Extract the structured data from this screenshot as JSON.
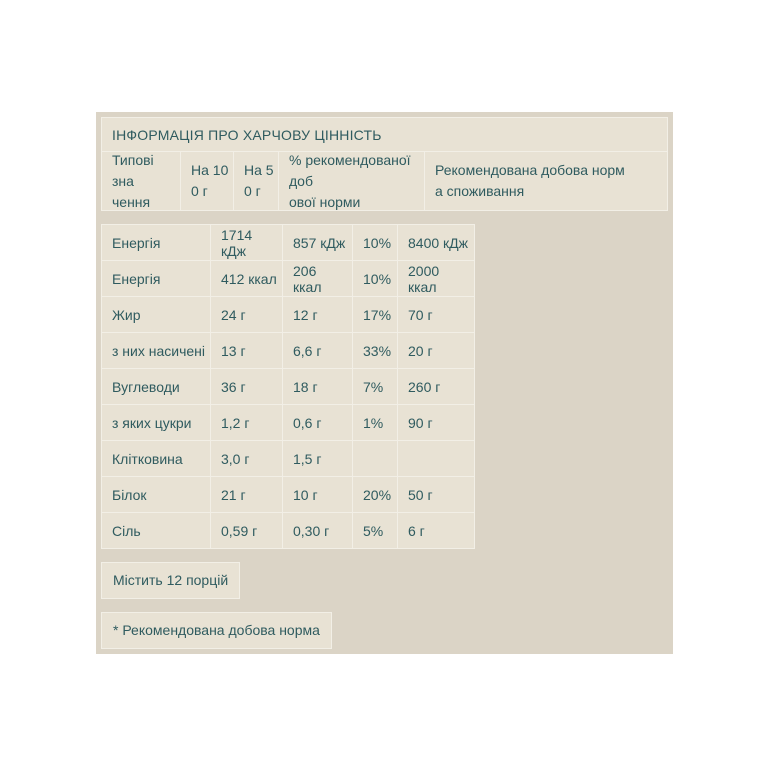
{
  "panel": {
    "title": "ІНФОРМАЦІЯ ПРО ХАРЧОВУ ЦІННІСТЬ"
  },
  "table": {
    "columns": [
      {
        "label": "Типові зна\nчення"
      },
      {
        "label": "На 10\n0 г"
      },
      {
        "label": "На 5\n0 г"
      },
      {
        "label": "% рекомендованої доб\nової норми"
      },
      {
        "label": "Рекомендована добова норм\nа споживання"
      }
    ],
    "rows": [
      {
        "name": "Енергія",
        "per_100g": "1714 кДж",
        "per_50g": "857 кДж",
        "percent_rda": "10%",
        "rda": "8400 кДж"
      },
      {
        "name": "Енергія",
        "per_100g": "412 ккал",
        "per_50g": "206 ккал",
        "percent_rda": "10%",
        "rda": "2000 ккал"
      },
      {
        "name": "Жир",
        "per_100g": "24 г",
        "per_50g": "12 г",
        "percent_rda": "17%",
        "rda": "70 г"
      },
      {
        "name": "з них насичені",
        "per_100g": "13 г",
        "per_50g": "6,6 г",
        "percent_rda": "33%",
        "rda": "20 г"
      },
      {
        "name": "Вуглеводи",
        "per_100g": "36 г",
        "per_50g": "18 г",
        "percent_rda": "7%",
        "rda": "260 г"
      },
      {
        "name": "з яких цукри",
        "per_100g": "1,2 г",
        "per_50g": "0,6 г",
        "percent_rda": "1%",
        "rda": "90 г"
      },
      {
        "name": "Клітковина",
        "per_100g": "3,0 г",
        "per_50g": "1,5 г",
        "percent_rda": "",
        "rda": ""
      },
      {
        "name": "Білок",
        "per_100g": "21 г",
        "per_50g": "10 г",
        "percent_rda": "20%",
        "rda": "50 г"
      },
      {
        "name": "Сіль",
        "per_100g": "0,59 г",
        "per_50g": "0,30 г",
        "percent_rda": "5%",
        "rda": "6 г"
      }
    ]
  },
  "footer": {
    "servings_note": "Містить 12 порцій",
    "rda_note": "* Рекомендована добова норма"
  },
  "colors": {
    "page_bg": "#ffffff",
    "panel_bg": "#dbd4c6",
    "cell_bg": "#e8e2d4",
    "cell_border": "#f2efe6",
    "text": "#2f5b5f"
  }
}
